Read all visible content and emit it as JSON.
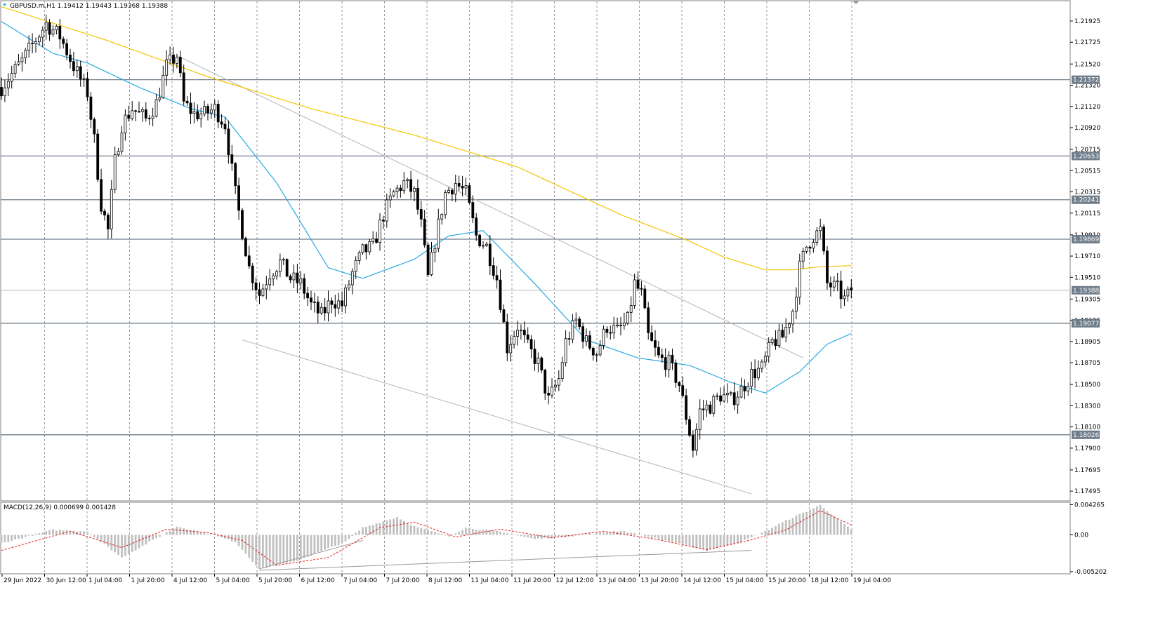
{
  "chart_data": [
    {
      "type": "candlestick",
      "title": "GBPUSD.m,H1  1.19412 1.19443 1.19368 1.19388",
      "price_scale": [
        "1.21925",
        "1.21725",
        "1.21520",
        "1.21320",
        "1.21120",
        "1.20920",
        "1.20715",
        "1.20515",
        "1.20315",
        "1.20115",
        "1.19910",
        "1.19710",
        "1.19510",
        "1.19305",
        "1.19105",
        "1.18905",
        "1.18705",
        "1.18500",
        "1.18300",
        "1.18100",
        "1.17900",
        "1.17695",
        "1.17495"
      ],
      "ylim": [
        1.1741,
        1.2211
      ],
      "x_labels": [
        "29 Jun 2022",
        "30 Jun 12:00",
        "1 Jul 04:00",
        "1 Jul 20:00",
        "4 Jul 12:00",
        "5 Jul 04:00",
        "5 Jul 20:00",
        "6 Jul 12:00",
        "7 Jul 04:00",
        "7 Jul 20:00",
        "8 Jul 12:00",
        "11 Jul 04:00",
        "11 Jul 20:00",
        "12 Jul 12:00",
        "13 Jul 04:00",
        "13 Jul 20:00",
        "14 Jul 12:00",
        "15 Jul 04:00",
        "15 Jul 20:00",
        "18 Jul 12:00",
        "19 Jul 04:00"
      ],
      "horizontal_levels": [
        {
          "label": "1.21372",
          "value": 1.21372
        },
        {
          "label": "1.20653",
          "value": 1.20653
        },
        {
          "label": "1.20241",
          "value": 1.20241
        },
        {
          "label": "1.19869",
          "value": 1.19869
        },
        {
          "label": "1.19077",
          "value": 1.19077
        },
        {
          "label": "1.18026",
          "value": 1.18026
        }
      ],
      "current_price": {
        "label": "1.19388",
        "value": 1.19388
      },
      "close_path": [
        [
          0,
          1.213
        ],
        [
          6,
          1.2155
        ],
        [
          10,
          1.2175
        ],
        [
          13,
          1.219
        ],
        [
          17,
          1.2178
        ],
        [
          21,
          1.215
        ],
        [
          25,
          1.2125
        ],
        [
          27,
          1.208
        ],
        [
          29,
          1.202
        ],
        [
          31,
          1.1995
        ],
        [
          33,
          1.206
        ],
        [
          35,
          1.2095
        ],
        [
          38,
          1.211
        ],
        [
          42,
          1.21
        ],
        [
          45,
          1.2115
        ],
        [
          48,
          1.215
        ],
        [
          51,
          1.216
        ],
        [
          53,
          1.2115
        ],
        [
          56,
          1.2105
        ],
        [
          59,
          1.2105
        ],
        [
          62,
          1.211
        ],
        [
          65,
          1.2095
        ],
        [
          68,
          1.203
        ],
        [
          72,
          1.196
        ],
        [
          75,
          1.1935
        ],
        [
          78,
          1.1955
        ],
        [
          81,
          1.1965
        ],
        [
          84,
          1.195
        ],
        [
          87,
          1.1945
        ],
        [
          90,
          1.1925
        ],
        [
          93,
          1.1915
        ],
        [
          96,
          1.193
        ],
        [
          99,
          1.1925
        ],
        [
          102,
          1.1955
        ],
        [
          105,
          1.1975
        ],
        [
          108,
          1.198
        ],
        [
          111,
          1.201
        ],
        [
          114,
          1.203
        ],
        [
          117,
          1.204
        ],
        [
          120,
          1.203
        ],
        [
          122,
          1.2
        ],
        [
          124,
          1.195
        ],
        [
          126,
          1.1985
        ],
        [
          129,
          1.203
        ],
        [
          132,
          1.204
        ],
        [
          135,
          1.203
        ],
        [
          138,
          1.199
        ],
        [
          141,
          1.198
        ],
        [
          144,
          1.195
        ],
        [
          147,
          1.1885
        ],
        [
          150,
          1.1905
        ],
        [
          153,
          1.1885
        ],
        [
          156,
          1.187
        ],
        [
          159,
          1.1835
        ],
        [
          162,
          1.1855
        ],
        [
          164,
          1.189
        ],
        [
          167,
          1.191
        ],
        [
          170,
          1.189
        ],
        [
          173,
          1.188
        ],
        [
          176,
          1.1905
        ],
        [
          179,
          1.19
        ],
        [
          182,
          1.191
        ],
        [
          184,
          1.1945
        ],
        [
          186,
          1.1935
        ],
        [
          188,
          1.1895
        ],
        [
          191,
          1.1875
        ],
        [
          194,
          1.187
        ],
        [
          197,
          1.185
        ],
        [
          199,
          1.182
        ],
        [
          201,
          1.179
        ],
        [
          203,
          1.1825
        ],
        [
          206,
          1.183
        ],
        [
          209,
          1.184
        ],
        [
          212,
          1.1835
        ],
        [
          215,
          1.1845
        ],
        [
          218,
          1.186
        ],
        [
          221,
          1.1865
        ],
        [
          224,
          1.189
        ],
        [
          227,
          1.1895
        ],
        [
          230,
          1.192
        ],
        [
          232,
          1.196
        ],
        [
          234,
          1.198
        ],
        [
          236,
          1.199
        ],
        [
          238,
          1.1995
        ],
        [
          240,
          1.1945
        ],
        [
          243,
          1.194
        ],
        [
          245,
          1.193
        ],
        [
          247,
          1.1937
        ]
      ],
      "ma_series": [
        {
          "color": "#f5c400",
          "points": [
            [
              0,
              1.2206
            ],
            [
              30,
              1.2175
            ],
            [
              60,
              1.214
            ],
            [
              90,
              1.211
            ],
            [
              120,
              1.2085
            ],
            [
              150,
              1.2055
            ],
            [
              180,
              1.201
            ],
            [
              200,
              1.1985
            ],
            [
              210,
              1.197
            ],
            [
              222,
              1.1958
            ],
            [
              230,
              1.1958
            ],
            [
              238,
              1.1961
            ],
            [
              247,
              1.1962
            ]
          ]
        },
        {
          "color": "#27aae1",
          "points": [
            [
              0,
              1.2192
            ],
            [
              15,
              1.2162
            ],
            [
              25,
              1.2153
            ],
            [
              40,
              1.213
            ],
            [
              55,
              1.211
            ],
            [
              65,
              1.2102
            ],
            [
              80,
              1.204
            ],
            [
              95,
              1.196
            ],
            [
              105,
              1.195
            ],
            [
              120,
              1.1968
            ],
            [
              130,
              1.199
            ],
            [
              140,
              1.1995
            ],
            [
              155,
              1.1945
            ],
            [
              170,
              1.1892
            ],
            [
              185,
              1.1875
            ],
            [
              200,
              1.1868
            ],
            [
              212,
              1.1852
            ],
            [
              222,
              1.1842
            ],
            [
              232,
              1.1862
            ],
            [
              240,
              1.1888
            ],
            [
              247,
              1.1898
            ]
          ]
        }
      ],
      "trend_lines": [
        {
          "color": "#b4b4b4",
          "from": [
            51,
            1.216
          ],
          "to": [
            233,
            1.1875
          ]
        },
        {
          "color": "#b4b4b4",
          "from": [
            70,
            1.1892
          ],
          "to": [
            218,
            1.1747
          ]
        }
      ]
    },
    {
      "type": "bar",
      "title": "MACD(12,26,9) 0.000699 0.001428",
      "price_scale": [
        "0.004265",
        "0.00",
        "-0.005202"
      ],
      "ylim": [
        -0.0054,
        0.0045
      ],
      "bar_color": "#c0c0c0",
      "signal_color": "#e41e1e",
      "histogram_path": [
        [
          0,
          -0.0012
        ],
        [
          15,
          0.0007
        ],
        [
          25,
          0.0005
        ],
        [
          35,
          -0.0032
        ],
        [
          45,
          -0.0005
        ],
        [
          51,
          0.0012
        ],
        [
          60,
          0.0002
        ],
        [
          68,
          -0.001
        ],
        [
          75,
          -0.0048
        ],
        [
          85,
          -0.0038
        ],
        [
          100,
          -0.001
        ],
        [
          105,
          0.001
        ],
        [
          115,
          0.0025
        ],
        [
          120,
          0.0012
        ],
        [
          130,
          -0.0002
        ],
        [
          135,
          0.001
        ],
        [
          145,
          0.0004
        ],
        [
          155,
          -0.0006
        ],
        [
          165,
          -0.0002
        ],
        [
          180,
          0.0006
        ],
        [
          195,
          -0.001
        ],
        [
          205,
          -0.0022
        ],
        [
          215,
          -0.001
        ],
        [
          222,
          0.0005
        ],
        [
          228,
          0.002
        ],
        [
          238,
          0.0042
        ],
        [
          247,
          0.0007
        ]
      ],
      "signal_path": [
        [
          0,
          -0.0022
        ],
        [
          20,
          0.0005
        ],
        [
          35,
          -0.0018
        ],
        [
          48,
          0.0008
        ],
        [
          60,
          0.0003
        ],
        [
          70,
          -0.0008
        ],
        [
          80,
          -0.0043
        ],
        [
          95,
          -0.0032
        ],
        [
          110,
          0.001
        ],
        [
          120,
          0.0018
        ],
        [
          132,
          -0.0003
        ],
        [
          145,
          0.0008
        ],
        [
          160,
          -0.0004
        ],
        [
          175,
          0.0005
        ],
        [
          190,
          -0.0006
        ],
        [
          205,
          -0.0021
        ],
        [
          218,
          -0.0007
        ],
        [
          228,
          0.0007
        ],
        [
          238,
          0.0034
        ],
        [
          247,
          0.0014
        ]
      ]
    }
  ]
}
